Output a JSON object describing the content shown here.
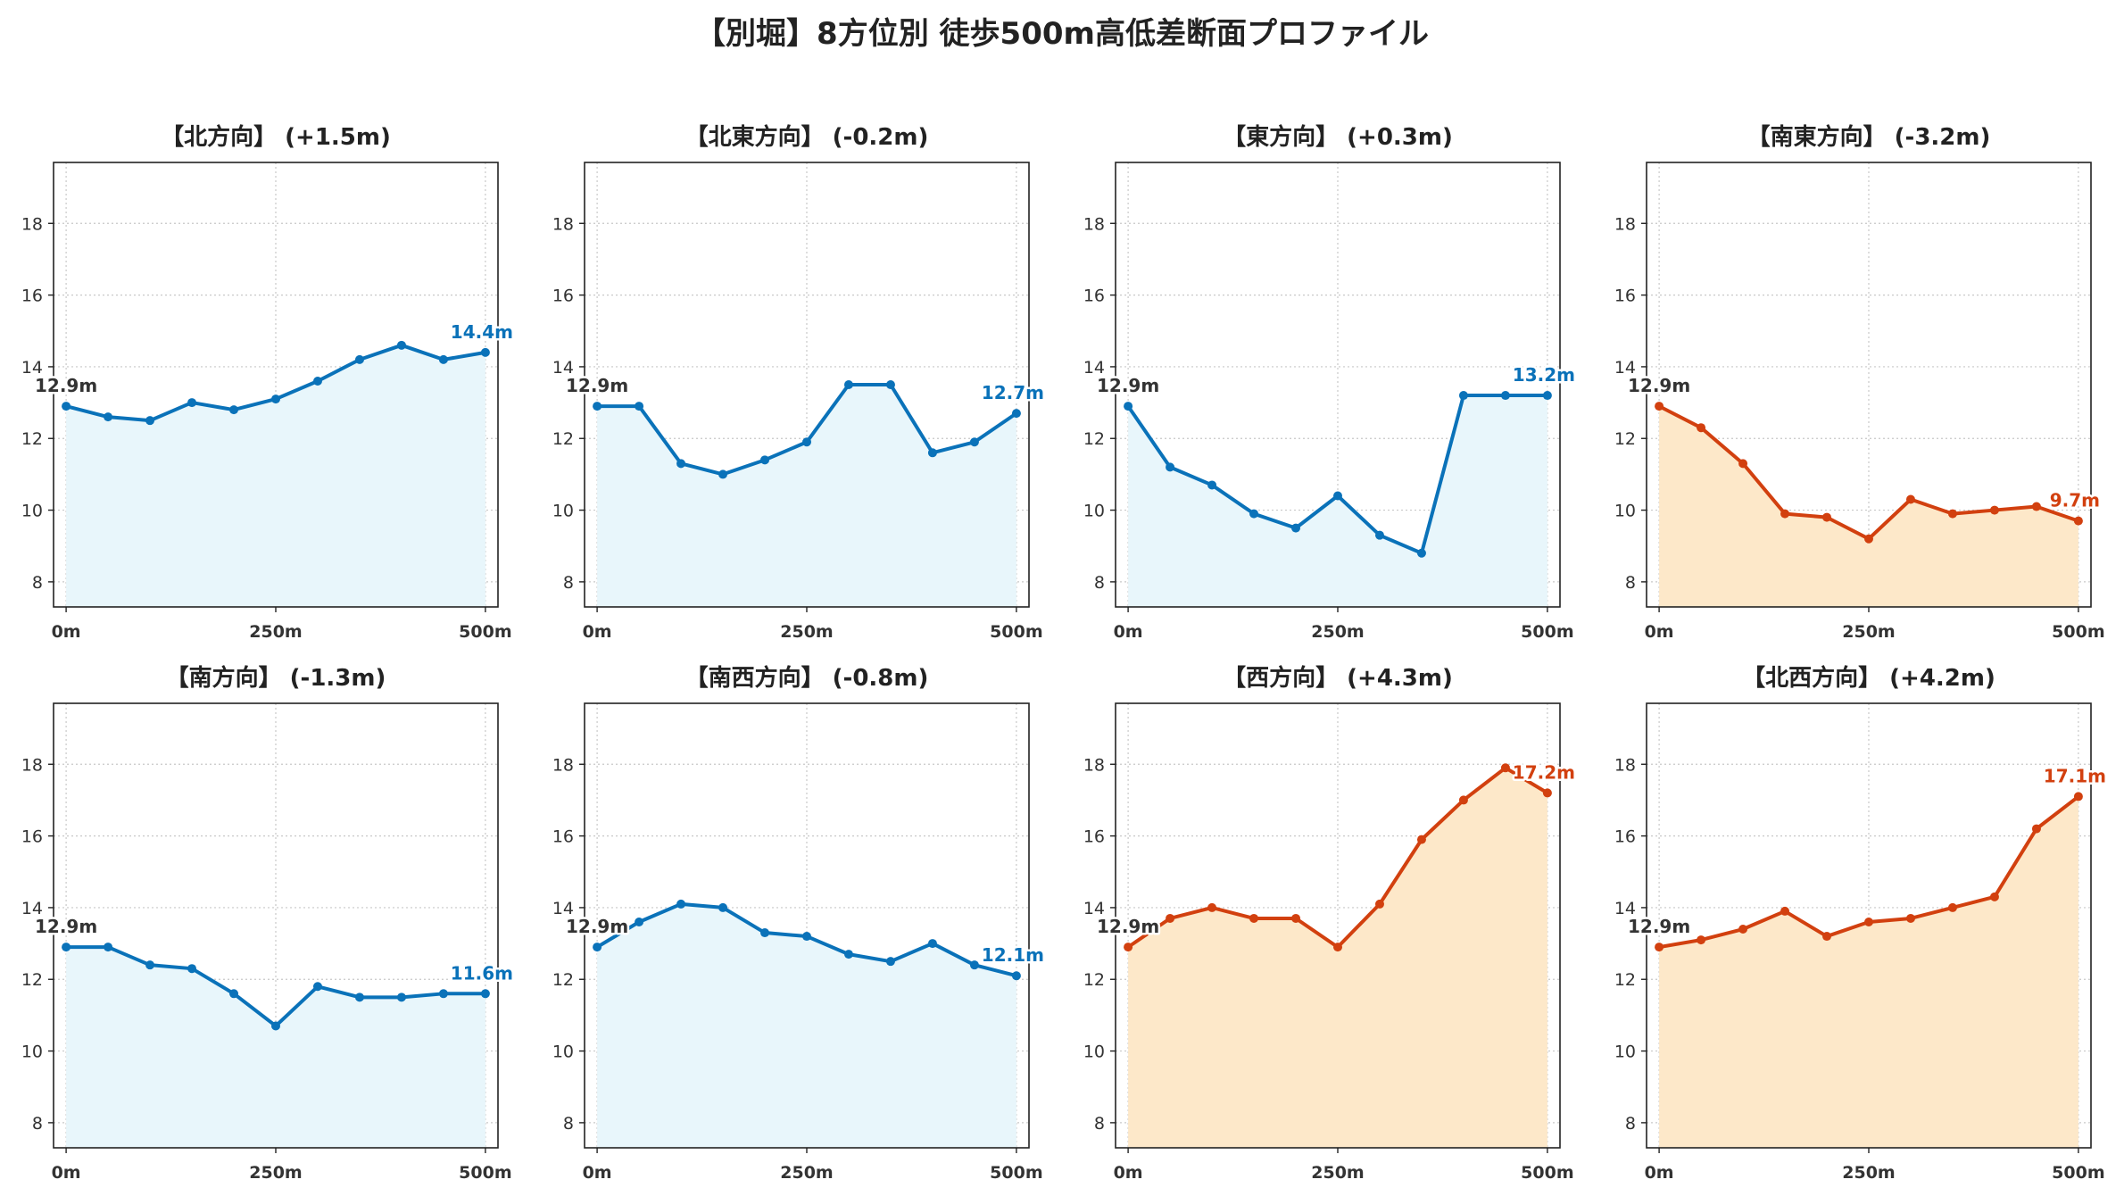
{
  "title": "【別堀】8方位別 徒歩500m高低差断面プロファイル",
  "colors": {
    "up_line": "#0a72b9",
    "up_fill": "#e8f6fb",
    "down_line": "#d2400f",
    "down_fill": "#fde8c9",
    "start_label": "#333333"
  },
  "chart_data": [
    {
      "type": "area",
      "title": "【北方向】 (+1.5m)",
      "style": "blue",
      "x": [
        0,
        50,
        100,
        150,
        200,
        250,
        300,
        350,
        400,
        450,
        500
      ],
      "y": [
        12.9,
        12.6,
        12.5,
        13.0,
        12.8,
        13.1,
        13.6,
        14.2,
        14.6,
        14.2,
        14.4
      ],
      "start_label": "12.9m",
      "end_label": "14.4m",
      "xticks": [
        "0m",
        "250m",
        "500m"
      ],
      "yticks": [
        8,
        10,
        12,
        14,
        16,
        18
      ],
      "xlim": [
        -15,
        515
      ],
      "ylim": [
        7.3,
        19.7
      ],
      "grid": true
    },
    {
      "type": "area",
      "title": "【北東方向】 (-0.2m)",
      "style": "blue",
      "x": [
        0,
        50,
        100,
        150,
        200,
        250,
        300,
        350,
        400,
        450,
        500
      ],
      "y": [
        12.9,
        12.9,
        11.3,
        11.0,
        11.4,
        11.9,
        13.5,
        13.5,
        11.6,
        11.9,
        12.7
      ],
      "start_label": "12.9m",
      "end_label": "12.7m",
      "xticks": [
        "0m",
        "250m",
        "500m"
      ],
      "yticks": [
        8,
        10,
        12,
        14,
        16,
        18
      ],
      "xlim": [
        -15,
        515
      ],
      "ylim": [
        7.3,
        19.7
      ],
      "grid": true
    },
    {
      "type": "area",
      "title": "【東方向】 (+0.3m)",
      "style": "blue",
      "x": [
        0,
        50,
        100,
        150,
        200,
        250,
        300,
        350,
        400,
        450,
        500
      ],
      "y": [
        12.9,
        11.2,
        10.7,
        9.9,
        9.5,
        10.4,
        9.3,
        8.8,
        13.2,
        13.2,
        13.2
      ],
      "start_label": "12.9m",
      "end_label": "13.2m",
      "xticks": [
        "0m",
        "250m",
        "500m"
      ],
      "yticks": [
        8,
        10,
        12,
        14,
        16,
        18
      ],
      "xlim": [
        -15,
        515
      ],
      "ylim": [
        7.3,
        19.7
      ],
      "grid": true
    },
    {
      "type": "area",
      "title": "【南東方向】 (-3.2m)",
      "style": "orange",
      "x": [
        0,
        50,
        100,
        150,
        200,
        250,
        300,
        350,
        400,
        450,
        500
      ],
      "y": [
        12.9,
        12.3,
        11.3,
        9.9,
        9.8,
        9.2,
        10.3,
        9.9,
        10.0,
        10.1,
        9.7
      ],
      "start_label": "12.9m",
      "end_label": "9.7m",
      "xticks": [
        "0m",
        "250m",
        "500m"
      ],
      "yticks": [
        8,
        10,
        12,
        14,
        16,
        18
      ],
      "xlim": [
        -15,
        515
      ],
      "ylim": [
        7.3,
        19.7
      ],
      "grid": true
    },
    {
      "type": "area",
      "title": "【南方向】 (-1.3m)",
      "style": "blue",
      "x": [
        0,
        50,
        100,
        150,
        200,
        250,
        300,
        350,
        400,
        450,
        500
      ],
      "y": [
        12.9,
        12.9,
        12.4,
        12.3,
        11.6,
        10.7,
        11.8,
        11.5,
        11.5,
        11.6,
        11.6
      ],
      "start_label": "12.9m",
      "end_label": "11.6m",
      "xticks": [
        "0m",
        "250m",
        "500m"
      ],
      "yticks": [
        8,
        10,
        12,
        14,
        16,
        18
      ],
      "xlim": [
        -15,
        515
      ],
      "ylim": [
        7.3,
        19.7
      ],
      "grid": true
    },
    {
      "type": "area",
      "title": "【南西方向】 (-0.8m)",
      "style": "blue",
      "x": [
        0,
        50,
        100,
        150,
        200,
        250,
        300,
        350,
        400,
        450,
        500
      ],
      "y": [
        12.9,
        13.6,
        14.1,
        14.0,
        13.3,
        13.2,
        12.7,
        12.5,
        13.0,
        12.4,
        12.1
      ],
      "start_label": "12.9m",
      "end_label": "12.1m",
      "xticks": [
        "0m",
        "250m",
        "500m"
      ],
      "yticks": [
        8,
        10,
        12,
        14,
        16,
        18
      ],
      "xlim": [
        -15,
        515
      ],
      "ylim": [
        7.3,
        19.7
      ],
      "grid": true
    },
    {
      "type": "area",
      "title": "【西方向】 (+4.3m)",
      "style": "orange",
      "x": [
        0,
        50,
        100,
        150,
        200,
        250,
        300,
        350,
        400,
        450,
        500
      ],
      "y": [
        12.9,
        13.7,
        14.0,
        13.7,
        13.7,
        12.9,
        14.1,
        15.9,
        17.0,
        17.9,
        17.2
      ],
      "start_label": "12.9m",
      "end_label": "17.2m",
      "xticks": [
        "0m",
        "250m",
        "500m"
      ],
      "yticks": [
        8,
        10,
        12,
        14,
        16,
        18
      ],
      "xlim": [
        -15,
        515
      ],
      "ylim": [
        7.3,
        19.7
      ],
      "grid": true
    },
    {
      "type": "area",
      "title": "【北西方向】 (+4.2m)",
      "style": "orange",
      "x": [
        0,
        50,
        100,
        150,
        200,
        250,
        300,
        350,
        400,
        450,
        500
      ],
      "y": [
        12.9,
        13.1,
        13.4,
        13.9,
        13.2,
        13.6,
        13.7,
        14.0,
        14.3,
        16.2,
        17.1
      ],
      "start_label": "12.9m",
      "end_label": "17.1m",
      "xticks": [
        "0m",
        "250m",
        "500m"
      ],
      "yticks": [
        8,
        10,
        12,
        14,
        16,
        18
      ],
      "xlim": [
        -15,
        515
      ],
      "ylim": [
        7.3,
        19.7
      ],
      "grid": true
    }
  ]
}
